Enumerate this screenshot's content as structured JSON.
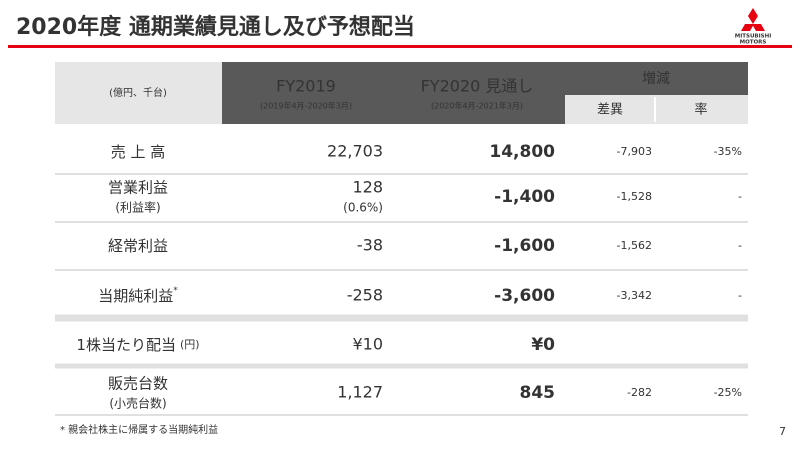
{
  "header": {
    "title": "2020年度 通期業績見通し及び予想配当",
    "logo_lines": [
      "MITSUBISHI",
      "MOTORS"
    ]
  },
  "table": {
    "unit": "(億円、千台)",
    "columns": [
      {
        "title": "FY2019",
        "sub": "(2019年4月-2020年3月)"
      },
      {
        "title": "FY2020 見通し",
        "sub": "(2020年4月-2021年3月)"
      }
    ],
    "change": {
      "title": "増減",
      "sub": [
        "差異",
        "率"
      ]
    },
    "rows": [
      {
        "label": "売 上 高",
        "fy2019": "22,703",
        "fy2020": "14,800",
        "diff": "-7,903",
        "rate": "-35%"
      },
      {
        "label": "営業利益",
        "sublabel": "(利益率)",
        "fy2019": "128",
        "fy2019_sub": "(0.6%)",
        "fy2020": "-1,400",
        "diff": "-1,528",
        "rate": "-"
      },
      {
        "label": "経常利益",
        "fy2019": "-38",
        "fy2020": "-1,600",
        "diff": "-1,562",
        "rate": "-"
      },
      {
        "label": "当期純利益",
        "note_mark": "*",
        "fy2019": "-258",
        "fy2020": "-3,600",
        "diff": "-3,342",
        "rate": "-"
      },
      {
        "label": "1株当たり配当",
        "label_unit": "(円)",
        "fy2019": "¥10",
        "fy2020": "¥0"
      },
      {
        "label": "販売台数",
        "sublabel": "(小売台数)",
        "fy2019": "1,127",
        "fy2020": "845",
        "diff": "-282",
        "rate": "-25%"
      }
    ]
  },
  "footnote": "* 親会社株主に帰属する当期純利益",
  "page_number": "7"
}
